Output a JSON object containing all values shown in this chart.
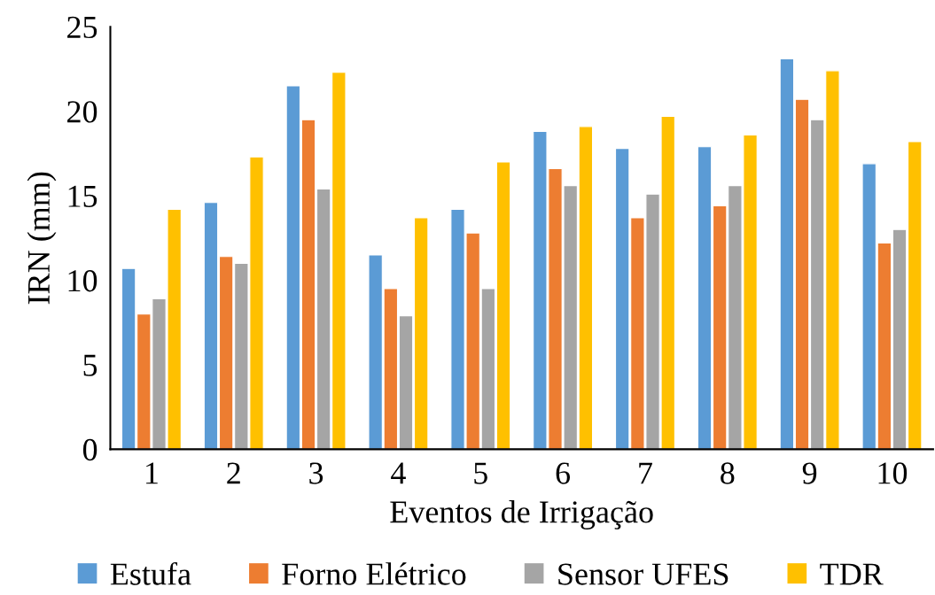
{
  "chart_data": {
    "type": "bar",
    "xlabel": "Eventos de Irrigação",
    "ylabel": "IRN (mm)",
    "categories": [
      "1",
      "2",
      "3",
      "4",
      "5",
      "6",
      "7",
      "8",
      "9",
      "10"
    ],
    "series": [
      {
        "name": "Estufa",
        "color": "#5b9bd5",
        "values": [
          10.7,
          14.6,
          21.5,
          11.5,
          14.2,
          18.8,
          17.8,
          17.9,
          23.1,
          16.9
        ]
      },
      {
        "name": "Forno Elétrico",
        "color": "#ed7d31",
        "values": [
          8.0,
          11.4,
          19.5,
          9.5,
          12.8,
          16.6,
          13.7,
          14.4,
          20.7,
          12.2
        ]
      },
      {
        "name": "Sensor UFES",
        "color": "#a5a5a5",
        "values": [
          8.9,
          11.0,
          15.4,
          7.9,
          9.5,
          15.6,
          15.1,
          15.6,
          19.5,
          13.0
        ]
      },
      {
        "name": "TDR",
        "color": "#ffc000",
        "values": [
          14.2,
          17.3,
          22.3,
          13.7,
          17.0,
          19.1,
          19.7,
          18.6,
          22.4,
          18.2
        ]
      }
    ],
    "ylim": [
      0,
      25
    ],
    "yticks": [
      0,
      5,
      10,
      15,
      20,
      25
    ],
    "grid": false,
    "legend": "bottom"
  }
}
